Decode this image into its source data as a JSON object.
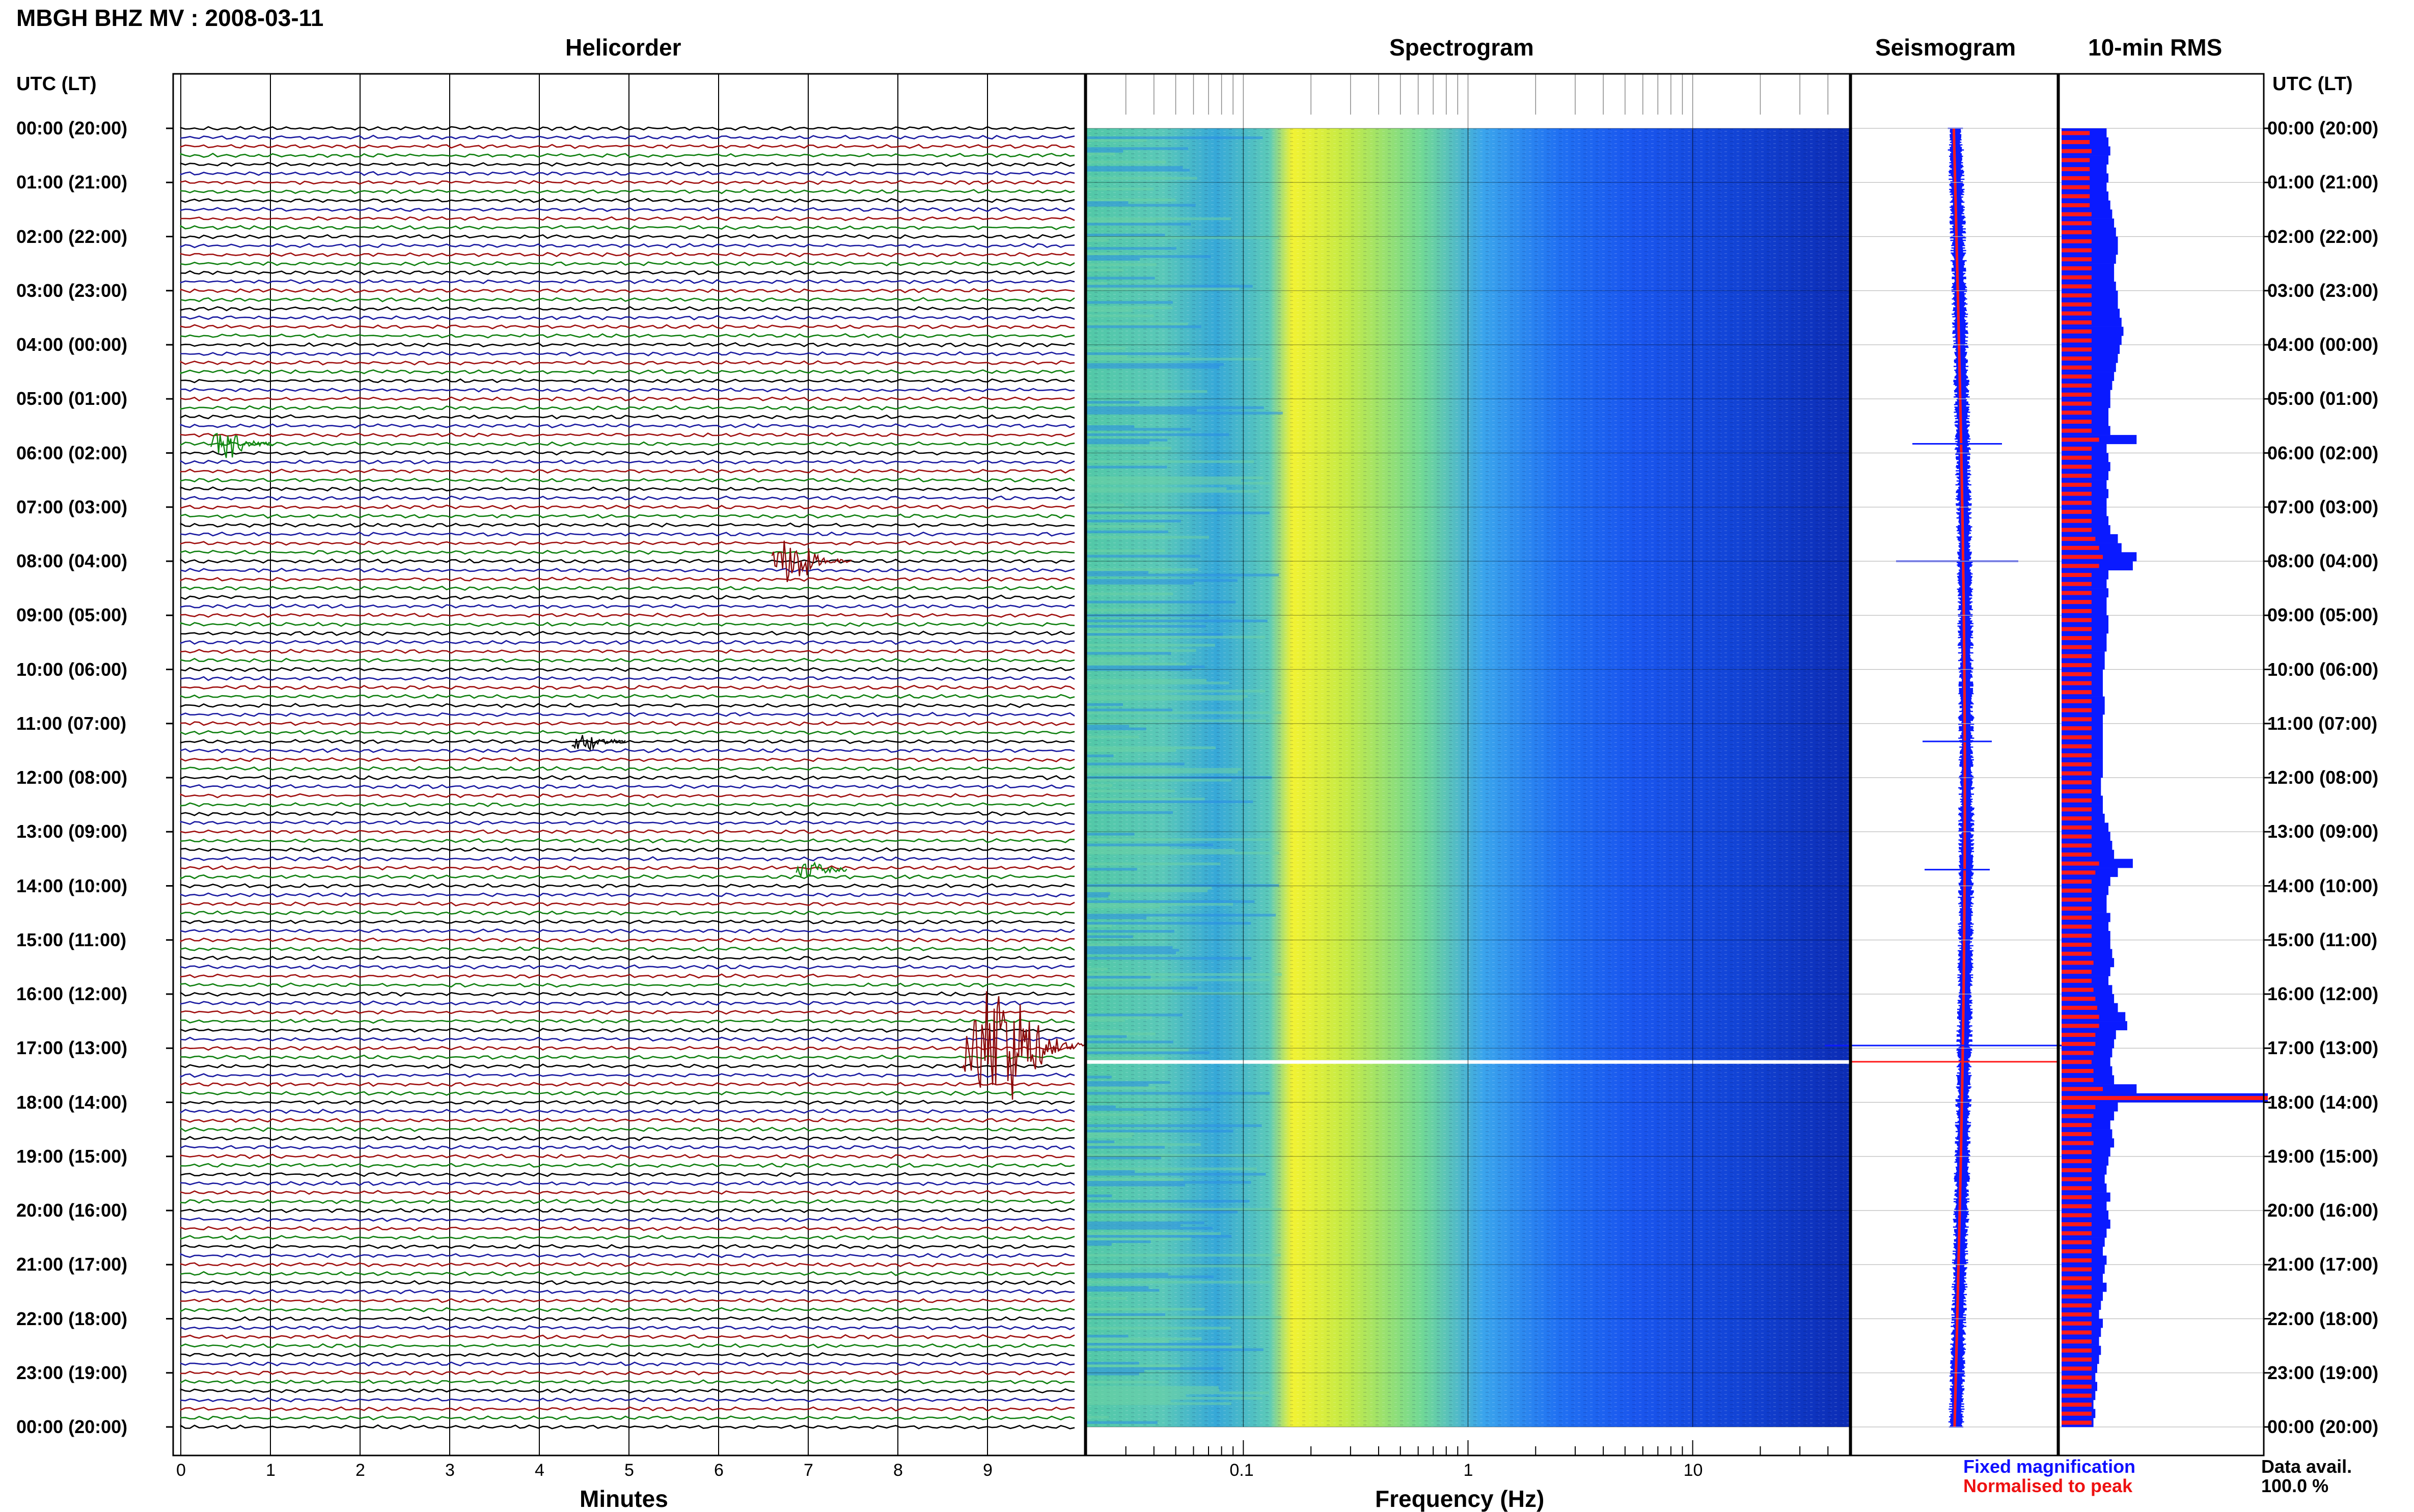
{
  "header": {
    "title": "MBGH BHZ MV : 2008-03-11",
    "utc_label_left": "UTC (LT)",
    "utc_label_right": "UTC (LT)"
  },
  "panels": {
    "helicorder": "Helicorder",
    "spectrogram": "Spectrogram",
    "seismogram": "Seismogram",
    "rms": "10-min RMS"
  },
  "time_labels": [
    "00:00 (20:00)",
    "01:00 (21:00)",
    "02:00 (22:00)",
    "03:00 (23:00)",
    "04:00 (00:00)",
    "05:00 (01:00)",
    "06:00 (02:00)",
    "07:00 (03:00)",
    "08:00 (04:00)",
    "09:00 (05:00)",
    "10:00 (06:00)",
    "11:00 (07:00)",
    "12:00 (08:00)",
    "13:00 (09:00)",
    "14:00 (10:00)",
    "15:00 (11:00)",
    "16:00 (12:00)",
    "17:00 (13:00)",
    "18:00 (14:00)",
    "19:00 (15:00)",
    "20:00 (16:00)",
    "21:00 (17:00)",
    "22:00 (18:00)",
    "23:00 (19:00)",
    "00:00 (20:00)"
  ],
  "axes": {
    "minutes_label": "Minutes",
    "minutes_ticks": [
      "0",
      "1",
      "2",
      "3",
      "4",
      "5",
      "6",
      "7",
      "8",
      "9"
    ],
    "frequency_label": "Frequency (Hz)",
    "frequency_ticks": [
      "0.1",
      "1",
      "10"
    ]
  },
  "legend": {
    "fixed": "Fixed magnification",
    "normalised": "Normalised to peak"
  },
  "data_avail": {
    "label": "Data avail.",
    "value": "100.0 %"
  },
  "colors": {
    "trace_cycle": [
      "#000000",
      "#1a1aa0",
      "#a01010",
      "#108010"
    ],
    "fixed": "#0a1aff",
    "normalised": "#ff1a1a"
  },
  "chart_data": [
    {
      "type": "line",
      "title": "Helicorder",
      "xlabel": "Minutes",
      "x_range_minutes": [
        0,
        10
      ],
      "rows_per_hour": 6,
      "events": [
        {
          "hour": 5.83,
          "minute": 0.5,
          "amplitude": 1.2,
          "trace_color": "green"
        },
        {
          "hour": 8.0,
          "minute": 6.8,
          "amplitude": 2.0,
          "trace_color": "darkred"
        },
        {
          "hour": 11.33,
          "minute": 4.5,
          "amplitude": 0.7,
          "trace_color": "black"
        },
        {
          "hour": 13.7,
          "minute": 7.0,
          "amplitude": 0.6,
          "trace_color": "green"
        },
        {
          "hour": 16.95,
          "minute": 9.1,
          "amplitude": 5.5,
          "trace_color": "darkred"
        }
      ]
    },
    {
      "type": "heatmap",
      "title": "Spectrogram",
      "xlabel": "Frequency (Hz)",
      "x_scale": "log",
      "xlim": [
        0.02,
        50
      ],
      "peak_band_hz": [
        0.15,
        0.5
      ],
      "gap_hour": 17.25
    },
    {
      "type": "area",
      "title": "10-min RMS",
      "series": [
        {
          "name": "Fixed magnification",
          "values": [
            24,
            25,
            26,
            25,
            24,
            25,
            24,
            25,
            26,
            27,
            28,
            29,
            30,
            30,
            29,
            28,
            28,
            29,
            30,
            30,
            31,
            32,
            33,
            32,
            31,
            30,
            29,
            28,
            27,
            26,
            26,
            25,
            25,
            26,
            40,
            24,
            25,
            26,
            25,
            24,
            25,
            24,
            24,
            25,
            26,
            30,
            32,
            40,
            38,
            25,
            24,
            25,
            24,
            24,
            25,
            25,
            24,
            24,
            23,
            23,
            22,
            22,
            22,
            23,
            23,
            22,
            22,
            22,
            22,
            22,
            22,
            22,
            21,
            21,
            22,
            22,
            23,
            25,
            26,
            27,
            28,
            38,
            30,
            26,
            25,
            24,
            24,
            26,
            25,
            26,
            26,
            27,
            28,
            26,
            25,
            27,
            28,
            30,
            34,
            35,
            29,
            28,
            27,
            26,
            27,
            28,
            40,
            110,
            30,
            28,
            26,
            27,
            28,
            26,
            25,
            24,
            23,
            24,
            26,
            24,
            25,
            26,
            24,
            23,
            22,
            24,
            23,
            22,
            24,
            22,
            21,
            20,
            22,
            21,
            20,
            21,
            20,
            19,
            18,
            19,
            18,
            17,
            18,
            17,
            18,
            16,
            17
          ]
        },
        {
          "name": "Normalised to peak",
          "values": [
            15,
            15,
            16,
            15,
            15,
            15,
            15,
            15,
            15,
            16,
            16,
            16,
            16,
            16,
            16,
            16,
            16,
            16,
            16,
            16,
            16,
            16,
            16,
            16,
            16,
            16,
            16,
            16,
            16,
            16,
            16,
            16,
            16,
            16,
            20,
            16,
            16,
            16,
            16,
            16,
            16,
            16,
            16,
            16,
            16,
            18,
            20,
            22,
            20,
            16,
            16,
            16,
            16,
            16,
            16,
            16,
            16,
            16,
            16,
            16,
            16,
            16,
            16,
            16,
            16,
            16,
            16,
            16,
            16,
            16,
            16,
            16,
            16,
            16,
            16,
            16,
            16,
            16,
            16,
            16,
            16,
            20,
            18,
            16,
            16,
            16,
            16,
            16,
            16,
            16,
            16,
            16,
            17,
            16,
            16,
            17,
            18,
            19,
            20,
            20,
            18,
            18,
            17,
            16,
            17,
            17,
            22,
            110,
            18,
            17,
            16,
            16,
            17,
            16,
            16,
            16,
            16,
            16,
            16,
            16,
            16,
            16,
            16,
            16,
            16,
            16,
            16,
            16,
            16,
            16,
            16,
            16,
            16,
            16,
            16,
            16,
            16,
            16,
            16,
            16,
            16,
            16,
            16,
            16,
            16,
            16,
            16
          ]
        }
      ]
    }
  ]
}
